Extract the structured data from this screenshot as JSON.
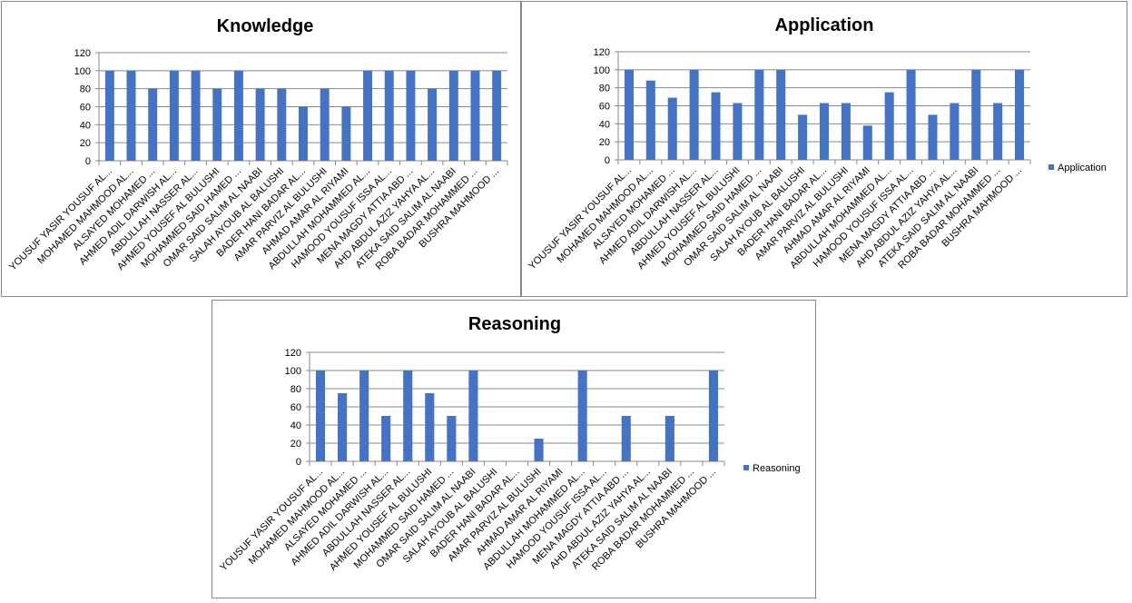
{
  "chart_data": [
    {
      "type": "bar",
      "title": "Knowledge",
      "legend": null,
      "ylim": [
        0,
        120
      ],
      "yticks": [
        0,
        20,
        40,
        60,
        80,
        100,
        120
      ],
      "grid": true,
      "color": "#4472C4",
      "categories": [
        "YOUSUF  YASIR YOUSUF  AL...",
        "MOHAMED MAHMOOD AL...",
        "ALSAYED MOHAMED ...",
        "AHMED ADIL DARWISH   AL...",
        "ABDULLAH NASSER AL...",
        "AHMED YOUSEF   AL BULUSHI",
        "MOHAMMED SAID HAMED ...",
        "OMAR SAID  SALIM AL NAABI",
        "SALAH AYOUB  AL BALUSHI",
        "BADER HANI BADAR  AL...",
        "AMAR PARVIZ  AL BULUSHI",
        "AHMAD AMAR  AL RIYAMI",
        "ABDULLAH MOHAMMED  AL...",
        "HAMOOD YOUSUF  ISSA AL...",
        "MENA  MAGDY ATTIA   ABD ...",
        "AHD ABDUL  AZIZ  YAHYA   AL...",
        "ATEKA SAID  SALIM AL NAABI",
        "ROBA BADAR MOHAMMED ...",
        "BUSHRA MAHMOOD ..."
      ],
      "values": [
        100,
        100,
        80,
        100,
        100,
        80,
        100,
        80,
        80,
        60,
        80,
        60,
        100,
        100,
        100,
        80,
        100,
        100,
        100
      ]
    },
    {
      "type": "bar",
      "title": "Application",
      "legend": "Application",
      "legend_position": "right",
      "ylim": [
        0,
        120
      ],
      "yticks": [
        0,
        20,
        40,
        60,
        80,
        100,
        120
      ],
      "grid": true,
      "color": "#4472C4",
      "categories": [
        "YOUSUF  YASIR YOUSUF  AL...",
        "MOHAMED MAHMOOD AL...",
        "ALSAYED MOHAMED ...",
        "AHMED ADIL DARWISH   AL...",
        "ABDULLAH NASSER AL...",
        "AHMED YOUSEF   AL BULUSHI",
        "MOHAMMED SAID HAMED ...",
        "OMAR SAID  SALIM AL NAABI",
        "SALAH AYOUB  AL BALUSHI",
        "BADER HANI BADAR  AL...",
        "AMAR PARVIZ  AL BULUSHI",
        "AHMAD AMAR  AL RIYAMI",
        "ABDULLAH MOHAMMED  AL...",
        "HAMOOD YOUSUF  ISSA AL...",
        "MENA  MAGDY ATTIA   ABD ...",
        "AHD ABDUL  AZIZ  YAHYA   AL...",
        "ATEKA SAID  SALIM AL NAABI",
        "ROBA BADAR MOHAMMED ...",
        "BUSHRA MAHMOOD ..."
      ],
      "values": [
        100,
        88,
        69,
        100,
        75,
        63,
        100,
        100,
        50,
        63,
        63,
        38,
        75,
        100,
        50,
        63,
        100,
        63,
        100
      ]
    },
    {
      "type": "bar",
      "title": "Reasoning",
      "legend": "Reasoning",
      "legend_position": "right",
      "ylim": [
        0,
        120
      ],
      "yticks": [
        0,
        20,
        40,
        60,
        80,
        100,
        120
      ],
      "grid": true,
      "color": "#4472C4",
      "categories": [
        "YOUSUF  YASIR YOUSUF  AL...",
        "MOHAMED MAHMOOD AL...",
        "ALSAYED MOHAMED ...",
        "AHMED ADIL DARWISH   AL...",
        "ABDULLAH NASSER AL...",
        "AHMED YOUSEF   AL BULUSHI",
        "MOHAMMED SAID HAMED ...",
        "OMAR SAID  SALIM AL NAABI",
        "SALAH AYOUB  AL BALUSHI",
        "BADER HANI BADAR  AL...",
        "AMAR PARVIZ  AL BULUSHI",
        "AHMAD AMAR  AL RIYAMI",
        "ABDULLAH MOHAMMED  AL...",
        "HAMOOD YOUSUF  ISSA AL...",
        "MENA  MAGDY ATTIA   ABD ...",
        "AHD ABDUL  AZIZ  YAHYA   AL...",
        "ATEKA SAID  SALIM AL NAABI",
        "ROBA BADAR MOHAMMED ...",
        "BUSHRA MAHMOOD ..."
      ],
      "values": [
        100,
        75,
        100,
        50,
        100,
        75,
        50,
        100,
        0,
        0,
        25,
        0,
        100,
        0,
        50,
        0,
        50,
        0,
        100
      ]
    }
  ]
}
